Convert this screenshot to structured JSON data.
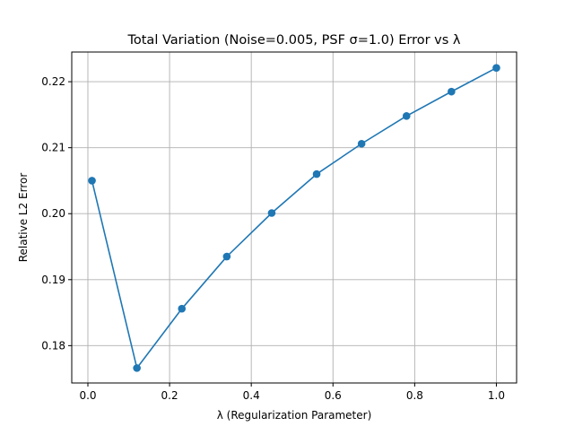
{
  "chart_data": {
    "type": "line",
    "title": "Total Variation (Noise=0.005, PSF σ=1.0) Error vs λ",
    "xlabel": "λ (Regularization Parameter)",
    "ylabel": "Relative L2 Error",
    "xlim": [
      -0.0395,
      1.0495
    ],
    "ylim": [
      0.17434,
      0.2245
    ],
    "xticks": [
      0.0,
      0.2,
      0.4,
      0.6,
      0.8,
      1.0
    ],
    "xtick_labels": [
      "0.0",
      "0.2",
      "0.4",
      "0.6",
      "0.8",
      "1.0"
    ],
    "yticks": [
      0.18,
      0.19,
      0.2,
      0.21,
      0.22
    ],
    "ytick_labels": [
      "0.18",
      "0.19",
      "0.20",
      "0.21",
      "0.22"
    ],
    "grid": true,
    "series": [
      {
        "color": "#1f77b4",
        "marker": "circle",
        "x": [
          0.01,
          0.12,
          0.23,
          0.34,
          0.45,
          0.56,
          0.67,
          0.78,
          0.89,
          1.0
        ],
        "y": [
          0.205,
          0.1766,
          0.1856,
          0.1935,
          0.2001,
          0.206,
          0.2106,
          0.2148,
          0.2185,
          0.2221
        ]
      }
    ]
  }
}
